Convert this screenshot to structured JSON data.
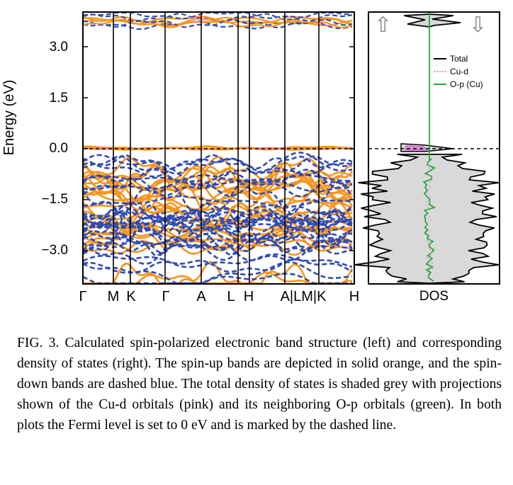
{
  "figure": {
    "y_axis_label": "Energy (eV)",
    "y_ticks": [
      "3.0",
      "1.5",
      "0.0",
      "−1.5",
      "−3.0"
    ],
    "kpath_labels": [
      "Γ",
      "M",
      "K",
      "Γ",
      "A",
      "L",
      "H",
      "A|LM|K",
      "H"
    ],
    "dos_label": "DOS",
    "spin_up_symbol": "⇧",
    "spin_down_symbol": "⇩",
    "legend": [
      {
        "label": "Total",
        "color": "#000000",
        "style": "solid"
      },
      {
        "label": "Cu-d",
        "color": "#e58be5",
        "style": "dotted"
      },
      {
        "label": "O-p (Cu)",
        "color": "#22aa33",
        "style": "solid"
      }
    ],
    "colors": {
      "spin_up": "#f7941d",
      "spin_down": "#2e4bb5",
      "dos_fill": "#d9d9d9"
    }
  },
  "chart_data": {
    "type": "line",
    "title": "",
    "ylabel": "Energy (eV)",
    "ylim": [
      -4.0,
      4.0
    ],
    "yticks": [
      3.0,
      1.5,
      0.0,
      -1.5,
      -3.0
    ],
    "fermi_level": 0.0,
    "kpath": [
      "Γ",
      "M",
      "K",
      "Γ",
      "A",
      "L",
      "H",
      "A|LM|K",
      "H"
    ],
    "series": [
      {
        "name": "spin-up bands",
        "style": "solid orange"
      },
      {
        "name": "spin-down bands",
        "style": "dashed blue"
      }
    ],
    "dos_legend": [
      "Total",
      "Cu-d",
      "O-p (Cu)"
    ]
  },
  "caption": "FIG. 3.  Calculated spin-polarized electronic band structure (left) and corresponding density of states (right). The spin-up bands are depicted in solid orange, and the spin-down bands are dashed blue.  The total density of states is shaded grey with projections shown of the Cu-d orbitals (pink) and its neighboring O-p orbitals (green).  In both plots the Fermi level is set to 0 eV and is marked by the dashed line."
}
